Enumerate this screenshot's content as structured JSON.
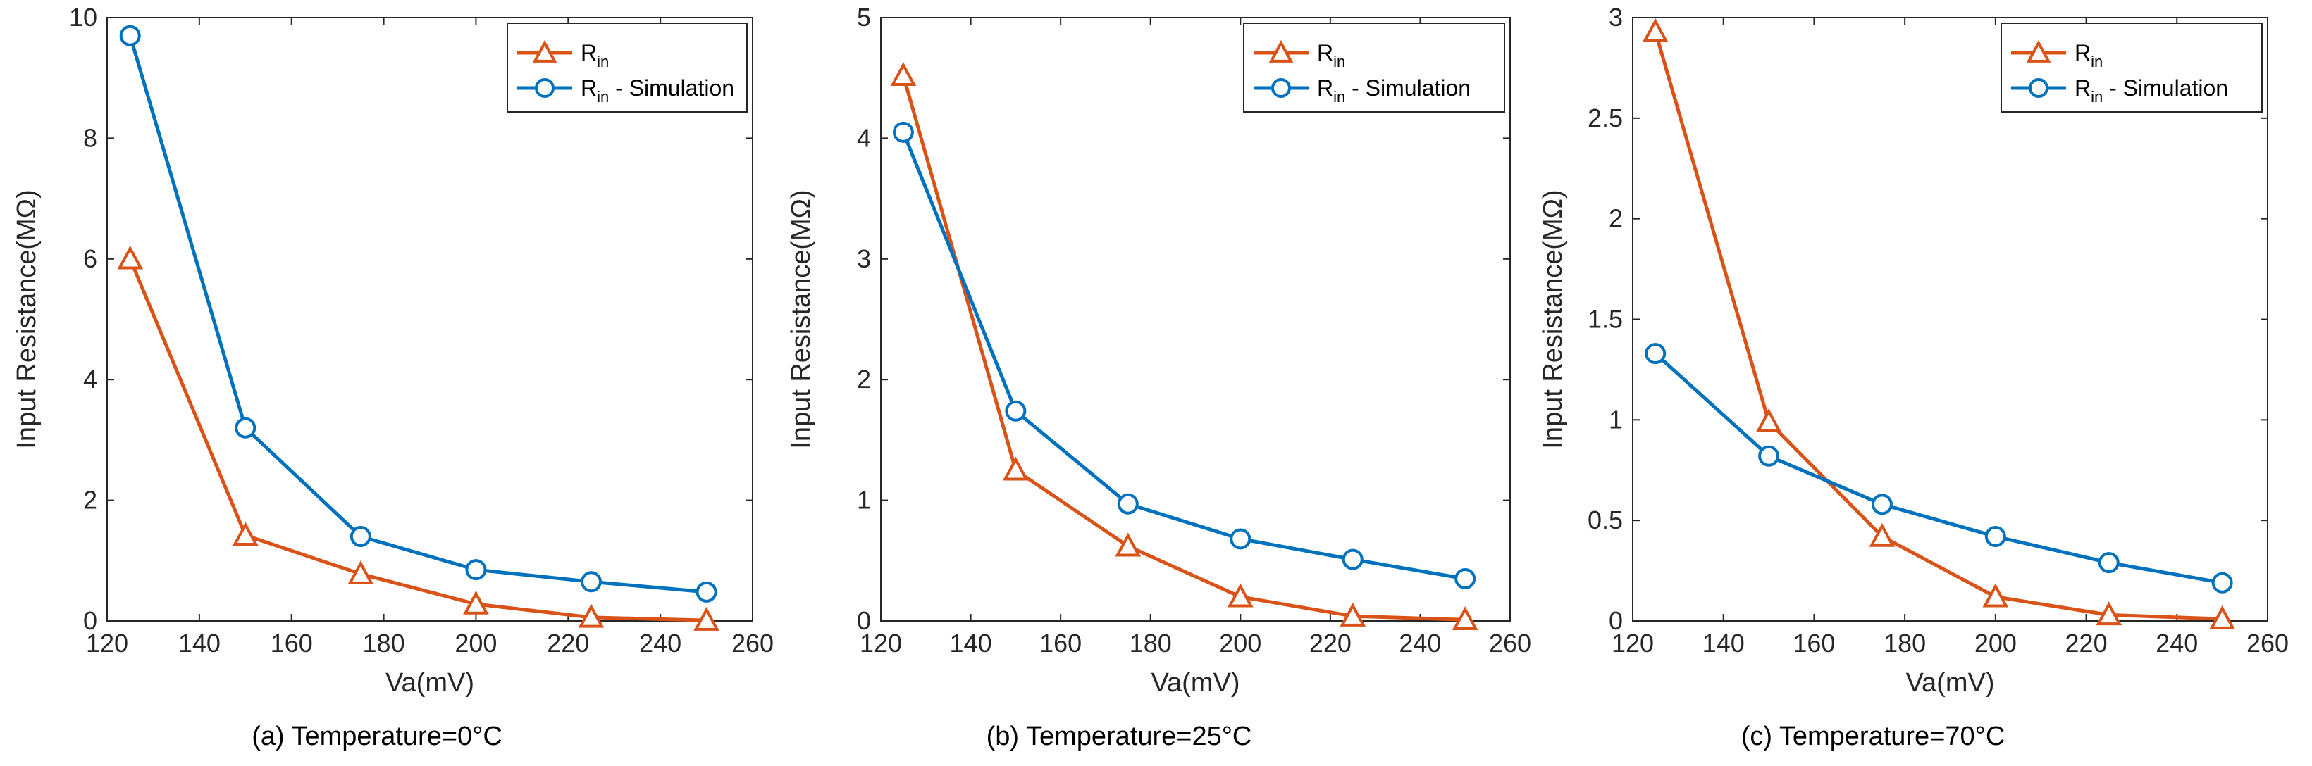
{
  "colors": {
    "measured": "#D95319",
    "simulation": "#0072BD",
    "axis": "#262626",
    "background": "#ffffff"
  },
  "legend": {
    "measured_main": "R",
    "measured_sub": "in",
    "simulation_main": "R",
    "simulation_sub": "in",
    "simulation_suffix": " - Simulation",
    "location": "top-right"
  },
  "chart_data": [
    {
      "type": "line",
      "caption": "(a) Temperature=0°C",
      "xlabel": "Va(mV)",
      "ylabel": "Input Resistance(MΩ)",
      "xlim": [
        120,
        260
      ],
      "ylim": [
        0,
        10
      ],
      "xticks": [
        "120",
        "140",
        "160",
        "180",
        "200",
        "220",
        "240",
        "260"
      ],
      "yticks": [
        "0",
        "2",
        "4",
        "6",
        "8",
        "10"
      ],
      "x": [
        125,
        150,
        175,
        200,
        225,
        250
      ],
      "series": [
        {
          "name": "R_in",
          "marker": "triangle",
          "values": [
            6.0,
            1.42,
            0.78,
            0.28,
            0.06,
            0.01
          ]
        },
        {
          "name": "R_in - Simulation",
          "marker": "circle",
          "values": [
            9.7,
            3.2,
            1.4,
            0.85,
            0.65,
            0.48
          ]
        }
      ]
    },
    {
      "type": "line",
      "caption": "(b) Temperature=25°C",
      "xlabel": "Va(mV)",
      "ylabel": "Input Resistance(MΩ)",
      "xlim": [
        120,
        260
      ],
      "ylim": [
        0,
        5
      ],
      "xticks": [
        "120",
        "140",
        "160",
        "180",
        "200",
        "220",
        "240",
        "260"
      ],
      "yticks": [
        "0",
        "1",
        "2",
        "3",
        "4",
        "5"
      ],
      "x": [
        125,
        150,
        175,
        200,
        225,
        250
      ],
      "series": [
        {
          "name": "R_in",
          "marker": "triangle",
          "values": [
            4.52,
            1.25,
            0.62,
            0.2,
            0.04,
            0.01
          ]
        },
        {
          "name": "R_in - Simulation",
          "marker": "circle",
          "values": [
            4.05,
            1.74,
            0.97,
            0.68,
            0.51,
            0.35
          ]
        }
      ]
    },
    {
      "type": "line",
      "caption": "(c) Temperature=70°C",
      "xlabel": "Va(mV)",
      "ylabel": "Input Resistance(MΩ)",
      "xlim": [
        120,
        260
      ],
      "ylim": [
        0,
        3
      ],
      "xticks": [
        "120",
        "140",
        "160",
        "180",
        "200",
        "220",
        "240",
        "260"
      ],
      "yticks": [
        "0",
        "0.5",
        "1",
        "1.5",
        "2",
        "2.5",
        "3"
      ],
      "x": [
        125,
        150,
        175,
        200,
        225,
        250
      ],
      "series": [
        {
          "name": "R_in",
          "marker": "triangle",
          "values": [
            2.93,
            0.99,
            0.42,
            0.12,
            0.03,
            0.01
          ]
        },
        {
          "name": "R_in - Simulation",
          "marker": "circle",
          "values": [
            1.33,
            0.82,
            0.58,
            0.42,
            0.29,
            0.19
          ]
        }
      ]
    }
  ]
}
